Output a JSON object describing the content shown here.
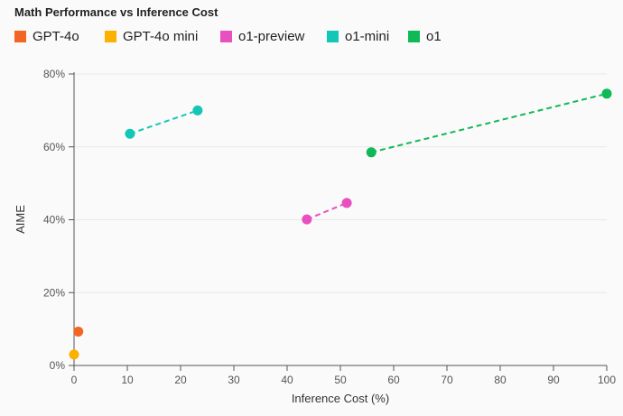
{
  "chart_data": {
    "type": "scatter",
    "title": "Math Performance vs Inference Cost",
    "xlabel": "Inference Cost (%)",
    "ylabel": "AIME",
    "xlim": [
      0,
      100
    ],
    "ylim": [
      0,
      80
    ],
    "xticks": [
      "0",
      "10",
      "20",
      "30",
      "40",
      "50",
      "60",
      "70",
      "80",
      "90",
      "100"
    ],
    "yticks": [
      "0%",
      "20%",
      "40%",
      "60%",
      "80%"
    ],
    "grid": "horizontal",
    "legend_placement": "top-left",
    "series": [
      {
        "name": "GPT-4o",
        "color": "#f26522",
        "points": [
          [
            0.8,
            9.3
          ]
        ],
        "connected": false
      },
      {
        "name": "GPT-4o mini",
        "color": "#fcb000",
        "points": [
          [
            0,
            3.0
          ]
        ],
        "connected": false
      },
      {
        "name": "o1-preview",
        "color": "#e84fc0",
        "points": [
          [
            43.7,
            40.1
          ],
          [
            51.2,
            44.6
          ]
        ],
        "connected": true
      },
      {
        "name": "o1-mini",
        "color": "#13c7b8",
        "points": [
          [
            10.5,
            63.6
          ],
          [
            23.2,
            70.0
          ]
        ],
        "connected": true
      },
      {
        "name": "o1",
        "color": "#10b957",
        "points": [
          [
            55.8,
            58.5
          ],
          [
            100,
            74.6
          ]
        ],
        "connected": true
      }
    ]
  }
}
